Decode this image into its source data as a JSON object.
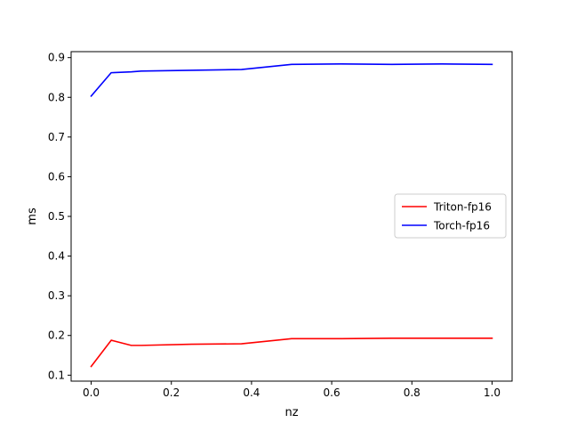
{
  "chart_data": {
    "type": "line",
    "title": "",
    "xlabel": "nz",
    "ylabel": "ms",
    "xlim": [
      -0.05,
      1.05
    ],
    "ylim": [
      0.085,
      0.915
    ],
    "xticks": [
      0.0,
      0.2,
      0.4,
      0.6,
      0.8,
      1.0
    ],
    "xtick_labels": [
      "0.0",
      "0.2",
      "0.4",
      "0.6",
      "0.8",
      "1.0"
    ],
    "yticks": [
      0.1,
      0.2,
      0.3,
      0.4,
      0.5,
      0.6,
      0.7,
      0.8,
      0.9
    ],
    "ytick_labels": [
      "0.1",
      "0.2",
      "0.3",
      "0.4",
      "0.5",
      "0.6",
      "0.7",
      "0.8",
      "0.9"
    ],
    "grid": false,
    "legend_position": "center-right",
    "series": [
      {
        "name": "Triton-fp16",
        "color": "#ff0000",
        "x": [
          0.0,
          0.05,
          0.1,
          0.125,
          0.25,
          0.375,
          0.5,
          0.625,
          0.75,
          0.875,
          1.0
        ],
        "y": [
          0.122,
          0.188,
          0.175,
          0.175,
          0.178,
          0.179,
          0.192,
          0.192,
          0.193,
          0.193,
          0.193
        ]
      },
      {
        "name": "Torch-fp16",
        "color": "#0000ff",
        "x": [
          0.0,
          0.05,
          0.1,
          0.125,
          0.25,
          0.375,
          0.5,
          0.625,
          0.75,
          0.875,
          1.0
        ],
        "y": [
          0.803,
          0.862,
          0.864,
          0.866,
          0.868,
          0.87,
          0.883,
          0.884,
          0.883,
          0.884,
          0.883
        ]
      }
    ]
  }
}
